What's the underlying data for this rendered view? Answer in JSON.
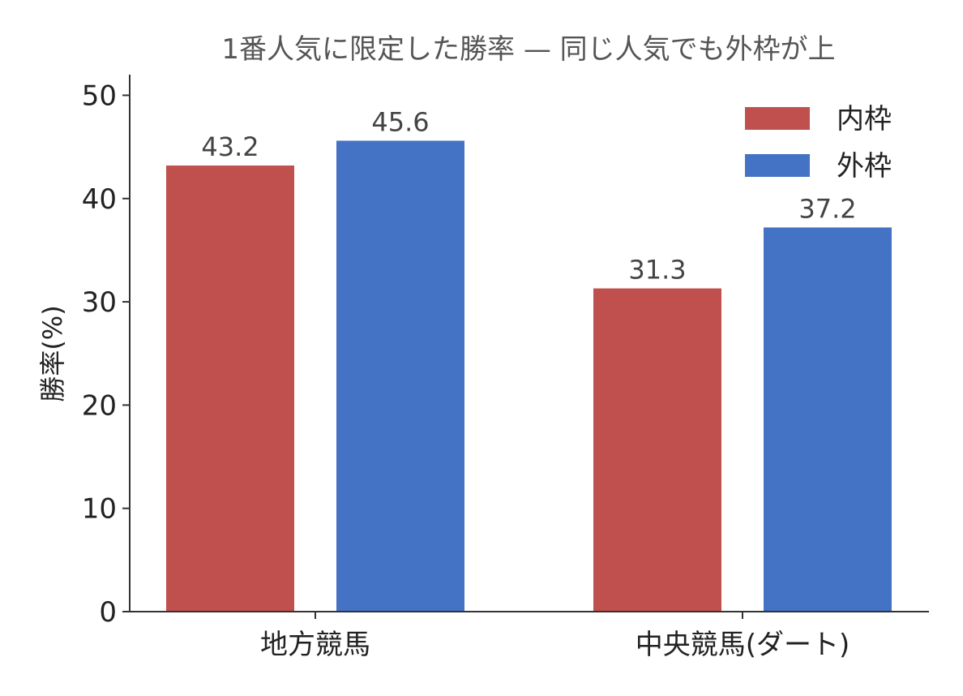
{
  "chart_data": {
    "type": "bar",
    "title": "1番人気に限定した勝率 — 同じ人気でも外枠が上",
    "xlabel": "",
    "ylabel": "勝率(%)",
    "categories": [
      "地方競馬",
      "中央競馬(ダート)"
    ],
    "series": [
      {
        "name": "内枠",
        "color": "#c0504d",
        "values": [
          43.2,
          31.3
        ]
      },
      {
        "name": "外枠",
        "color": "#4472c4",
        "values": [
          45.6,
          37.2
        ]
      }
    ],
    "ylim": [
      0,
      52
    ],
    "yticks": [
      0,
      10,
      20,
      30,
      40,
      50
    ],
    "grid": false,
    "legend_position": "top-right",
    "data_labels": true
  }
}
